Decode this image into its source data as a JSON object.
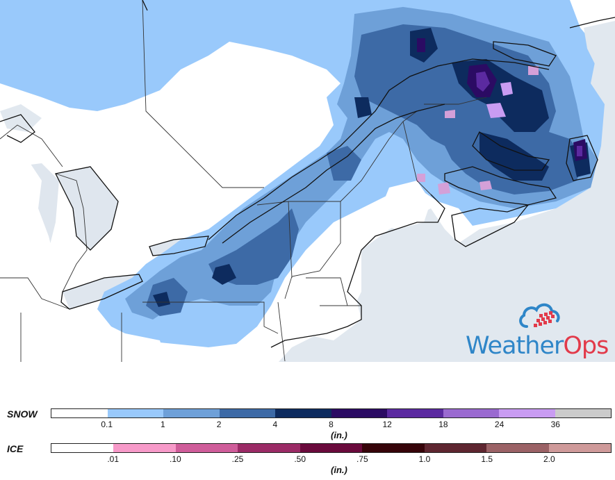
{
  "brand": {
    "word1": "Weather",
    "word2": "Ops",
    "logo": "cloud-icon"
  },
  "legend": {
    "snow": {
      "title": "SNOW",
      "unit": "(in.)",
      "colors": [
        "#ffffff",
        "#99c9fb",
        "#6ea0d8",
        "#3d6aa6",
        "#0d2b5e",
        "#2b0b63",
        "#5b2aa0",
        "#9a6ad0",
        "#c99cf2",
        "#cbcbcb"
      ],
      "ticks": [
        "0.1",
        "1",
        "2",
        "4",
        "8",
        "12",
        "18",
        "24",
        "36"
      ]
    },
    "ice": {
      "title": "ICE",
      "unit": "(in.)",
      "colors": [
        "#ffffff",
        "#f79ac9",
        "#cf5d9a",
        "#9b2b66",
        "#6a0a3c",
        "#360409",
        "#5e2630",
        "#9b6266",
        "#cf9a9a"
      ],
      "ticks": [
        ".01",
        ".10",
        ".25",
        ".50",
        ".75",
        "1.0",
        "1.5",
        "2.0"
      ]
    }
  }
}
